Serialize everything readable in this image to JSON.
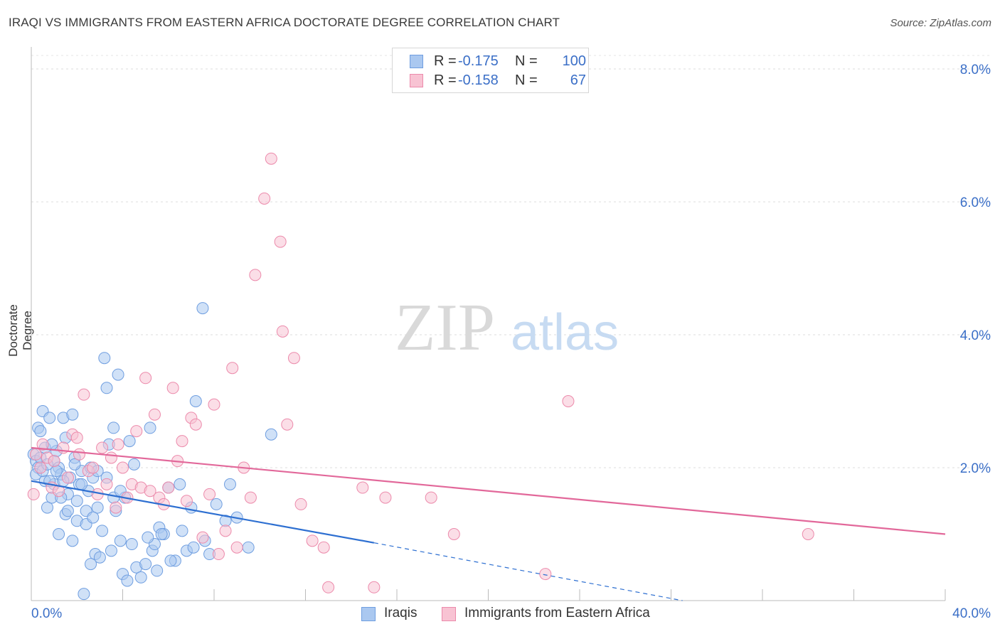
{
  "title": "IRAQI VS IMMIGRANTS FROM EASTERN AFRICA DOCTORATE DEGREE CORRELATION CHART",
  "source": "Source: ZipAtlas.com",
  "watermark": {
    "part1": "ZIP",
    "part2": "atlas"
  },
  "legend_top": {
    "rows": [
      {
        "r_label": "R =",
        "r_value": "-0.175",
        "n_label": "N =",
        "n_value": "100",
        "color": "#aac8f0",
        "border": "#6f9ee0"
      },
      {
        "r_label": "R =",
        "r_value": "-0.158",
        "n_label": "N =",
        "n_value": "67",
        "color": "#f8c3d3",
        "border": "#ec8aab"
      }
    ]
  },
  "legend_bottom": [
    {
      "label": "Iraqis",
      "color": "#aac8f0",
      "border": "#6f9ee0"
    },
    {
      "label": "Immigrants from Eastern Africa",
      "color": "#f8c3d3",
      "border": "#ec8aab"
    }
  ],
  "chart_data": {
    "type": "scatter",
    "title": "IRAQI VS IMMIGRANTS FROM EASTERN AFRICA DOCTORATE DEGREE CORRELATION CHART",
    "xlabel": "",
    "ylabel": "Doctorate Degree",
    "xlim": [
      0,
      40
    ],
    "ylim": [
      0,
      8
    ],
    "x_tick_labels": [
      {
        "value": 0,
        "label": "0.0%"
      },
      {
        "value": 40,
        "label": "40.0%"
      }
    ],
    "y_tick_labels": [
      {
        "value": 2,
        "label": "2.0%"
      },
      {
        "value": 4,
        "label": "4.0%"
      },
      {
        "value": 6,
        "label": "6.0%"
      },
      {
        "value": 8,
        "label": "8.0%"
      }
    ],
    "x_minor_ticks": [
      4,
      8,
      12,
      16,
      20,
      24,
      28,
      32,
      36,
      40
    ],
    "grid": true,
    "series": [
      {
        "name": "Iraqis",
        "color": "#6f9ee0",
        "fill": "#aac8f0",
        "trend": {
          "x0": 0,
          "y0": 1.8,
          "x1": 15,
          "y1": 0.87,
          "color": "#2d6fd1"
        },
        "trend_extension": {
          "x0": 15,
          "y0": 0.87,
          "x1": 28.5,
          "y1": 0.0
        },
        "points": [
          [
            0.1,
            2.2
          ],
          [
            0.2,
            2.1
          ],
          [
            0.3,
            2.6
          ],
          [
            0.3,
            2.0
          ],
          [
            0.4,
            2.15
          ],
          [
            0.5,
            2.85
          ],
          [
            0.6,
            2.3
          ],
          [
            0.6,
            1.8
          ],
          [
            0.7,
            1.4
          ],
          [
            0.8,
            2.75
          ],
          [
            0.9,
            1.55
          ],
          [
            1.0,
            2.1
          ],
          [
            1.0,
            1.75
          ],
          [
            1.1,
            2.25
          ],
          [
            1.2,
            1.0
          ],
          [
            1.2,
            2.0
          ],
          [
            1.3,
            1.9
          ],
          [
            1.4,
            2.75
          ],
          [
            1.5,
            1.3
          ],
          [
            1.5,
            2.45
          ],
          [
            1.6,
            1.6
          ],
          [
            1.7,
            1.85
          ],
          [
            1.8,
            2.8
          ],
          [
            1.9,
            2.15
          ],
          [
            2.0,
            1.5
          ],
          [
            2.0,
            1.2
          ],
          [
            2.1,
            1.75
          ],
          [
            2.2,
            1.95
          ],
          [
            2.3,
            0.1
          ],
          [
            2.4,
            1.15
          ],
          [
            2.5,
            1.65
          ],
          [
            2.6,
            2.0
          ],
          [
            2.7,
            1.85
          ],
          [
            2.8,
            0.7
          ],
          [
            2.9,
            1.4
          ],
          [
            3.0,
            0.65
          ],
          [
            3.1,
            1.05
          ],
          [
            3.2,
            3.65
          ],
          [
            3.3,
            1.85
          ],
          [
            3.4,
            2.35
          ],
          [
            3.5,
            0.75
          ],
          [
            3.6,
            2.6
          ],
          [
            3.7,
            1.35
          ],
          [
            3.8,
            3.4
          ],
          [
            3.9,
            0.9
          ],
          [
            4.0,
            0.4
          ],
          [
            4.1,
            1.55
          ],
          [
            4.3,
            2.4
          ],
          [
            4.5,
            2.05
          ],
          [
            4.6,
            0.5
          ],
          [
            4.8,
            0.35
          ],
          [
            5.0,
            0.55
          ],
          [
            5.2,
            2.6
          ],
          [
            5.3,
            0.75
          ],
          [
            5.4,
            0.85
          ],
          [
            5.5,
            0.45
          ],
          [
            5.6,
            1.1
          ],
          [
            5.8,
            1.0
          ],
          [
            6.0,
            1.7
          ],
          [
            6.3,
            0.6
          ],
          [
            6.5,
            1.75
          ],
          [
            6.8,
            0.75
          ],
          [
            7.0,
            1.4
          ],
          [
            7.2,
            3.0
          ],
          [
            7.5,
            4.4
          ],
          [
            7.8,
            0.7
          ],
          [
            8.1,
            1.45
          ],
          [
            8.5,
            1.2
          ],
          [
            9.5,
            0.8
          ],
          [
            10.5,
            2.5
          ],
          [
            0.2,
            1.9
          ],
          [
            0.4,
            2.55
          ],
          [
            0.5,
            1.95
          ],
          [
            0.7,
            2.05
          ],
          [
            0.8,
            1.8
          ],
          [
            0.9,
            2.35
          ],
          [
            1.1,
            1.95
          ],
          [
            1.3,
            1.55
          ],
          [
            1.6,
            1.35
          ],
          [
            1.8,
            0.9
          ],
          [
            1.9,
            2.05
          ],
          [
            2.2,
            1.75
          ],
          [
            2.4,
            1.35
          ],
          [
            2.6,
            0.55
          ],
          [
            2.7,
            1.25
          ],
          [
            3.3,
            3.2
          ],
          [
            3.6,
            1.55
          ],
          [
            4.2,
            0.3
          ],
          [
            4.4,
            0.85
          ],
          [
            5.1,
            0.95
          ],
          [
            5.7,
            1.0
          ],
          [
            6.1,
            0.6
          ],
          [
            6.6,
            1.05
          ],
          [
            7.1,
            0.8
          ],
          [
            7.6,
            0.9
          ],
          [
            8.7,
            1.75
          ],
          [
            9.0,
            1.25
          ],
          [
            1.4,
            1.8
          ],
          [
            2.9,
            1.95
          ],
          [
            3.9,
            1.65
          ]
        ]
      },
      {
        "name": "Immigrants from Eastern Africa",
        "color": "#ec8aab",
        "fill": "#f8c3d3",
        "trend": {
          "x0": 0,
          "y0": 2.3,
          "x1": 40,
          "y1": 1.0,
          "color": "#e2689a"
        },
        "points": [
          [
            0.1,
            1.6
          ],
          [
            0.2,
            2.2
          ],
          [
            0.4,
            2.0
          ],
          [
            0.5,
            2.35
          ],
          [
            0.7,
            2.15
          ],
          [
            0.9,
            1.7
          ],
          [
            1.0,
            2.1
          ],
          [
            1.2,
            1.65
          ],
          [
            1.4,
            2.3
          ],
          [
            1.6,
            1.85
          ],
          [
            1.8,
            2.5
          ],
          [
            2.0,
            2.45
          ],
          [
            2.1,
            2.2
          ],
          [
            2.3,
            3.1
          ],
          [
            2.5,
            1.95
          ],
          [
            2.7,
            2.0
          ],
          [
            2.9,
            1.6
          ],
          [
            3.1,
            2.3
          ],
          [
            3.3,
            1.75
          ],
          [
            3.5,
            2.15
          ],
          [
            3.7,
            1.4
          ],
          [
            3.8,
            2.35
          ],
          [
            4.0,
            2.0
          ],
          [
            4.2,
            1.55
          ],
          [
            4.4,
            1.75
          ],
          [
            4.6,
            2.55
          ],
          [
            4.8,
            1.7
          ],
          [
            5.0,
            3.35
          ],
          [
            5.2,
            1.65
          ],
          [
            5.4,
            2.8
          ],
          [
            5.6,
            1.55
          ],
          [
            5.8,
            1.45
          ],
          [
            6.0,
            1.7
          ],
          [
            6.2,
            3.2
          ],
          [
            6.4,
            2.1
          ],
          [
            6.6,
            2.4
          ],
          [
            6.8,
            1.5
          ],
          [
            7.0,
            2.75
          ],
          [
            7.2,
            2.65
          ],
          [
            7.5,
            0.95
          ],
          [
            7.8,
            1.6
          ],
          [
            8.0,
            2.95
          ],
          [
            8.2,
            0.7
          ],
          [
            8.5,
            1.05
          ],
          [
            8.8,
            3.5
          ],
          [
            9.0,
            0.8
          ],
          [
            9.3,
            2.0
          ],
          [
            9.6,
            1.55
          ],
          [
            9.8,
            4.9
          ],
          [
            10.2,
            6.05
          ],
          [
            10.5,
            6.65
          ],
          [
            10.9,
            5.4
          ],
          [
            11.0,
            4.05
          ],
          [
            11.2,
            2.65
          ],
          [
            11.5,
            3.65
          ],
          [
            11.8,
            1.45
          ],
          [
            12.3,
            0.9
          ],
          [
            12.8,
            0.8
          ],
          [
            13.0,
            0.2
          ],
          [
            14.5,
            1.7
          ],
          [
            15.0,
            0.2
          ],
          [
            15.5,
            1.55
          ],
          [
            17.5,
            1.55
          ],
          [
            18.5,
            1.0
          ],
          [
            22.5,
            0.4
          ],
          [
            23.5,
            3.0
          ],
          [
            34.0,
            1.0
          ]
        ]
      }
    ]
  }
}
